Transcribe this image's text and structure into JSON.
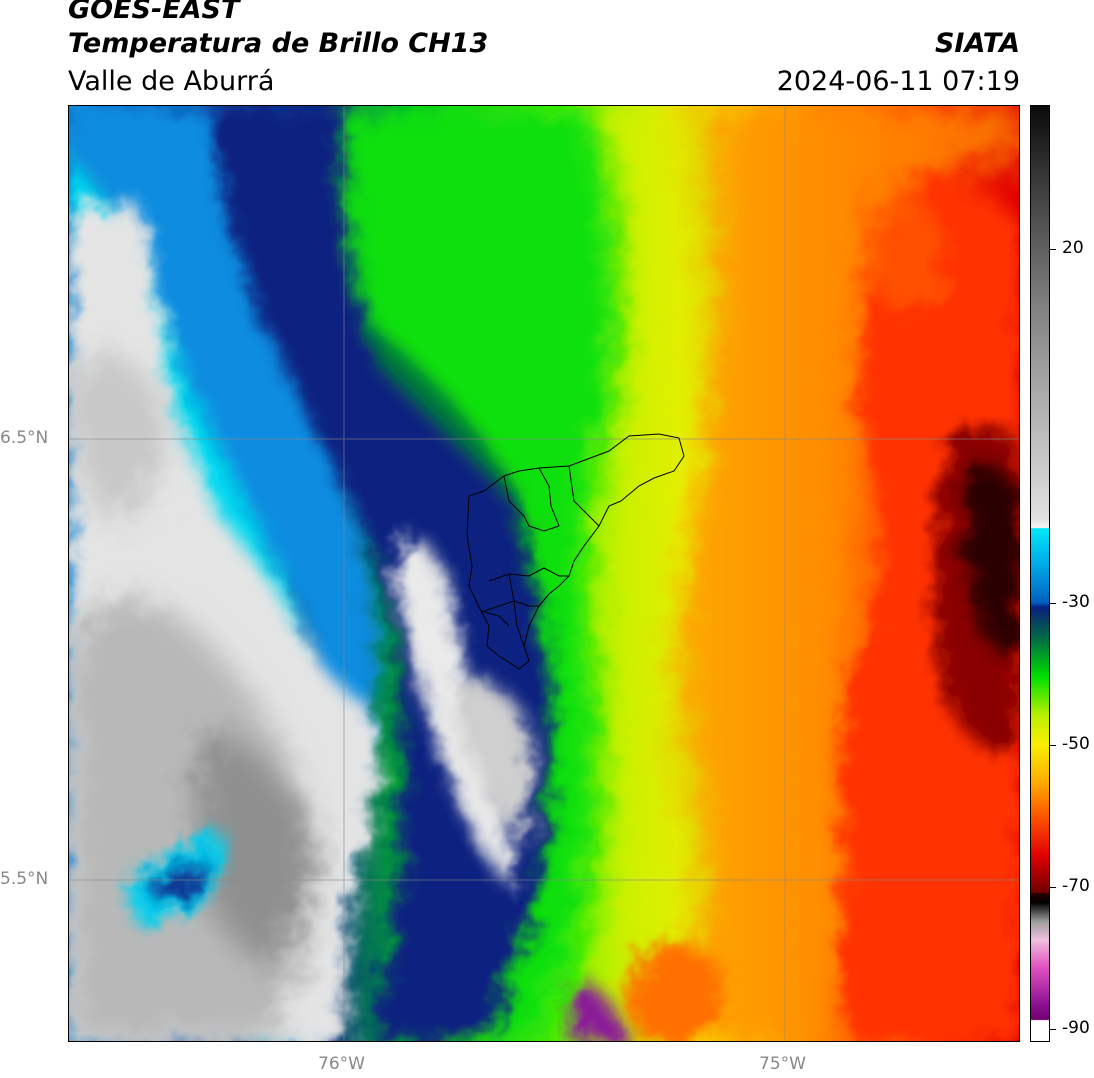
{
  "header": {
    "satellite": "GOES-EAST",
    "product": "Temperatura de Brillo CH13",
    "region": "Valle de Aburrá",
    "organization": "SIATA",
    "datetime": "2024-06-11 07:19"
  },
  "map": {
    "lat_labels": [
      "6.5°N",
      "5.5°N"
    ],
    "lon_labels": [
      "76°W",
      "75°W"
    ],
    "gridlines": true,
    "overlay": "Valle de Aburrá municipal boundaries"
  },
  "colorbar": {
    "ticks": [
      "20",
      "-30",
      "-50",
      "-70",
      "-90"
    ],
    "range": [
      -90,
      30
    ],
    "colors": {
      "warm_gray_top": "#111111",
      "light_gray": "#e8e8e8",
      "cyan": "#00d8f0",
      "navy": "#0a1f80",
      "green": "#00e000",
      "yellow": "#f8f000",
      "orange": "#ff8000",
      "red": "#e00000",
      "dark_red": "#300000",
      "magenta": "#c030b0",
      "purple": "#800080"
    }
  }
}
